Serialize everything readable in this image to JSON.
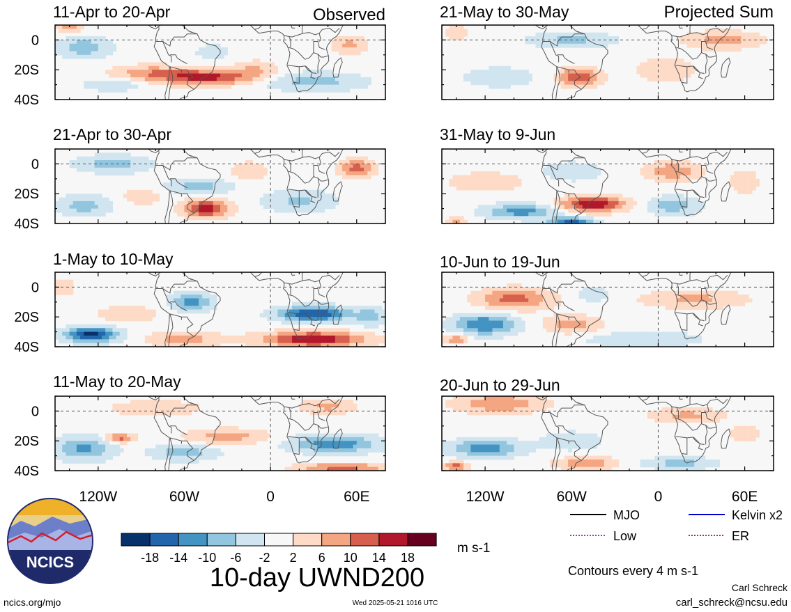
{
  "figure": {
    "title": "10-day UWND200",
    "units": "m s-1",
    "contour_note": "Contours every 4 m s-1",
    "site": "ncics.org/mjo",
    "timestamp": "Wed 2025-05-21 1016 UTC",
    "author": "Carl Schreck",
    "email": "carl_schreck@ncsu.edu",
    "logo_text": "NCICS"
  },
  "columns": {
    "left_label": "Observed",
    "right_label": "Projected Sum"
  },
  "legend": {
    "items": [
      {
        "label": "MJO",
        "color": "#000000",
        "style": "solid"
      },
      {
        "label": "Kelvin x2",
        "color": "#0000cc",
        "style": "solid"
      },
      {
        "label": "Low",
        "color": "#9933cc",
        "style": "dotted"
      },
      {
        "label": "ER",
        "color": "#cc2222",
        "style": "dotted"
      }
    ]
  },
  "chart_data": {
    "type": "heatmap",
    "variable": "200-hPa zonal wind anomaly (10-day mean)",
    "xlim": [
      -150,
      80
    ],
    "ylim": [
      -40,
      10
    ],
    "x_ticks": [
      -120,
      -60,
      0,
      60
    ],
    "x_tick_labels": [
      "120W",
      "60W",
      "0",
      "60E"
    ],
    "y_ticks": [
      0,
      -20,
      -40
    ],
    "y_tick_labels": [
      "0",
      "20S",
      "40S"
    ],
    "colorbar": {
      "levels": [
        -18,
        -14,
        -10,
        -6,
        -2,
        2,
        6,
        10,
        14,
        18
      ],
      "tick_labels": [
        "-18",
        "-14",
        "-10",
        "-6",
        "-2",
        "2",
        "6",
        "10",
        "14",
        "18"
      ],
      "colors": [
        "#08306b",
        "#2166ac",
        "#4393c3",
        "#92c5de",
        "#d1e5f0",
        "#f7f7f7",
        "#fddbc7",
        "#f4a582",
        "#d6604d",
        "#b2182b",
        "#67001f"
      ]
    },
    "panels": [
      {
        "title": "11-Apr to 20-Apr",
        "column": "left",
        "row": 0,
        "blobs": [
          {
            "lon": -45,
            "lat": -25,
            "value": 16,
            "slon": 32,
            "slat": 5
          },
          {
            "lon": -85,
            "lat": -22,
            "value": 8,
            "slon": 25,
            "slat": 5
          },
          {
            "lon": -10,
            "lat": -20,
            "value": 6,
            "slon": 15,
            "slat": 6
          },
          {
            "lon": -130,
            "lat": -5,
            "value": -9,
            "slon": 18,
            "slat": 7
          },
          {
            "lon": -110,
            "lat": -30,
            "value": -6,
            "slon": 20,
            "slat": 4
          },
          {
            "lon": 55,
            "lat": -3,
            "value": 7,
            "slon": 12,
            "slat": 6
          },
          {
            "lon": 30,
            "lat": -28,
            "value": -8,
            "slon": 35,
            "slat": 6
          },
          {
            "lon": -40,
            "lat": -8,
            "value": -5,
            "slon": 12,
            "slat": 5
          },
          {
            "lon": -140,
            "lat": 8,
            "value": 8,
            "slon": 8,
            "slat": 4
          }
        ]
      },
      {
        "title": "21-Apr to 30-Apr",
        "column": "left",
        "row": 1,
        "blobs": [
          {
            "lon": -45,
            "lat": -30,
            "value": 16,
            "slon": 16,
            "slat": 6
          },
          {
            "lon": 60,
            "lat": -3,
            "value": 12,
            "slon": 12,
            "slat": 6
          },
          {
            "lon": -110,
            "lat": 0,
            "value": -8,
            "slon": 25,
            "slat": 6
          },
          {
            "lon": -50,
            "lat": -15,
            "value": -8,
            "slon": 22,
            "slat": 5
          },
          {
            "lon": -130,
            "lat": -28,
            "value": -8,
            "slon": 18,
            "slat": 7
          },
          {
            "lon": 20,
            "lat": -25,
            "value": -7,
            "slon": 25,
            "slat": 7
          },
          {
            "lon": -15,
            "lat": -5,
            "value": 6,
            "slon": 12,
            "slat": 6
          },
          {
            "lon": -90,
            "lat": -22,
            "value": 5,
            "slon": 14,
            "slat": 5
          }
        ]
      },
      {
        "title": "1-May to 10-May",
        "column": "left",
        "row": 2,
        "blobs": [
          {
            "lon": -125,
            "lat": -32,
            "value": -20,
            "slon": 18,
            "slat": 5
          },
          {
            "lon": 30,
            "lat": -18,
            "value": -18,
            "slon": 25,
            "slat": 5
          },
          {
            "lon": 30,
            "lat": -35,
            "value": 18,
            "slon": 35,
            "slat": 5
          },
          {
            "lon": -55,
            "lat": -10,
            "value": -12,
            "slon": 14,
            "slat": 6
          },
          {
            "lon": -60,
            "lat": -35,
            "value": 8,
            "slon": 25,
            "slat": 5
          },
          {
            "lon": -100,
            "lat": -18,
            "value": 6,
            "slon": 20,
            "slat": 5
          },
          {
            "lon": -145,
            "lat": 0,
            "value": 6,
            "slon": 8,
            "slat": 6
          },
          {
            "lon": 70,
            "lat": -20,
            "value": -8,
            "slon": 10,
            "slat": 6
          }
        ]
      },
      {
        "title": "11-May to 20-May",
        "column": "left",
        "row": 3,
        "blobs": [
          {
            "lon": -130,
            "lat": -25,
            "value": -11,
            "slon": 20,
            "slat": 8
          },
          {
            "lon": -105,
            "lat": -18,
            "value": 12,
            "slon": 10,
            "slat": 3
          },
          {
            "lon": -30,
            "lat": -17,
            "value": 8,
            "slon": 28,
            "slat": 5
          },
          {
            "lon": 45,
            "lat": -22,
            "value": -13,
            "slon": 30,
            "slat": 6
          },
          {
            "lon": -60,
            "lat": -28,
            "value": -9,
            "slon": 22,
            "slat": 5
          },
          {
            "lon": 50,
            "lat": -38,
            "value": 12,
            "slon": 30,
            "slat": 3
          },
          {
            "lon": -80,
            "lat": 2,
            "value": 6,
            "slon": 30,
            "slat": 5
          },
          {
            "lon": 40,
            "lat": 3,
            "value": 7,
            "slon": 18,
            "slat": 5
          }
        ]
      },
      {
        "title": "21-May to 30-May",
        "column": "right",
        "row": 0,
        "blobs": [
          {
            "lon": -55,
            "lat": -25,
            "value": 14,
            "slon": 14,
            "slat": 6
          },
          {
            "lon": 45,
            "lat": 0,
            "value": 8,
            "slon": 25,
            "slat": 6
          },
          {
            "lon": -60,
            "lat": 0,
            "value": -7,
            "slon": 30,
            "slat": 5
          },
          {
            "lon": -110,
            "lat": -25,
            "value": -4,
            "slon": 30,
            "slat": 8
          },
          {
            "lon": 5,
            "lat": -20,
            "value": 5,
            "slon": 22,
            "slat": 8
          },
          {
            "lon": -140,
            "lat": 5,
            "value": 5,
            "slon": 8,
            "slat": 5
          }
        ]
      },
      {
        "title": "31-May to 9-Jun",
        "column": "right",
        "row": 1,
        "blobs": [
          {
            "lon": -45,
            "lat": -27,
            "value": 18,
            "slon": 22,
            "slat": 5
          },
          {
            "lon": 10,
            "lat": -5,
            "value": 10,
            "slon": 18,
            "slat": 6
          },
          {
            "lon": 10,
            "lat": -28,
            "value": -9,
            "slon": 18,
            "slat": 6
          },
          {
            "lon": -95,
            "lat": -32,
            "value": -12,
            "slon": 25,
            "slat": 5
          },
          {
            "lon": -60,
            "lat": -39,
            "value": -16,
            "slon": 15,
            "slat": 3
          },
          {
            "lon": -120,
            "lat": -12,
            "value": 6,
            "slon": 25,
            "slat": 6
          },
          {
            "lon": -60,
            "lat": -5,
            "value": -6,
            "slon": 20,
            "slat": 6
          },
          {
            "lon": 60,
            "lat": -12,
            "value": 5,
            "slon": 10,
            "slat": 8
          },
          {
            "lon": -140,
            "lat": -38,
            "value": 8,
            "slon": 6,
            "slat": 3
          }
        ]
      },
      {
        "title": "10-Jun to 19-Jun",
        "column": "right",
        "row": 2,
        "blobs": [
          {
            "lon": -100,
            "lat": -8,
            "value": 12,
            "slon": 25,
            "slat": 7
          },
          {
            "lon": -120,
            "lat": -25,
            "value": -14,
            "slon": 22,
            "slat": 7
          },
          {
            "lon": -60,
            "lat": -25,
            "value": 8,
            "slon": 20,
            "slat": 6
          },
          {
            "lon": 25,
            "lat": -8,
            "value": 7,
            "slon": 35,
            "slat": 6
          },
          {
            "lon": -10,
            "lat": -35,
            "value": -6,
            "slon": 40,
            "slat": 5
          },
          {
            "lon": -140,
            "lat": -35,
            "value": 10,
            "slon": 8,
            "slat": 3
          },
          {
            "lon": -45,
            "lat": -5,
            "value": -5,
            "slon": 12,
            "slat": 5
          }
        ]
      },
      {
        "title": "20-Jun to 29-Jun",
        "column": "right",
        "row": 3,
        "blobs": [
          {
            "lon": -110,
            "lat": 5,
            "value": 10,
            "slon": 30,
            "slat": 6
          },
          {
            "lon": -120,
            "lat": -25,
            "value": -12,
            "slon": 25,
            "slat": 6
          },
          {
            "lon": -60,
            "lat": -20,
            "value": -6,
            "slon": 20,
            "slat": 6
          },
          {
            "lon": -50,
            "lat": -35,
            "value": 10,
            "slon": 20,
            "slat": 4
          },
          {
            "lon": 20,
            "lat": -3,
            "value": 7,
            "slon": 25,
            "slat": 5
          },
          {
            "lon": 15,
            "lat": -35,
            "value": -8,
            "slon": 25,
            "slat": 4
          },
          {
            "lon": -140,
            "lat": -37,
            "value": 12,
            "slon": 8,
            "slat": 3
          },
          {
            "lon": 60,
            "lat": -15,
            "value": 5,
            "slon": 10,
            "slat": 6
          }
        ]
      }
    ]
  }
}
